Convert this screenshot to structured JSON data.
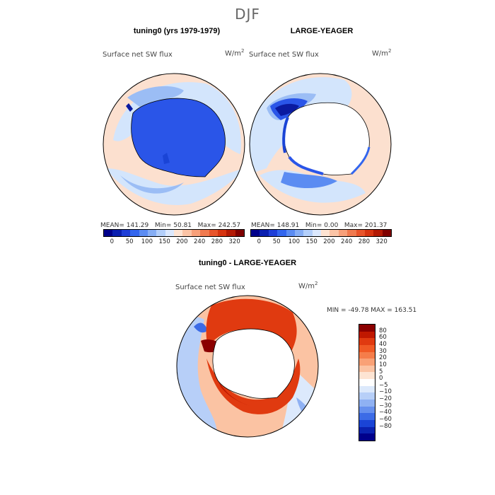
{
  "season": "DJF",
  "panels": [
    {
      "title": "tuning0 (yrs 1979-1979)",
      "variable": "Surface net SW flux",
      "units_base": "W/m",
      "units_exp": "2",
      "stats": {
        "mean": "141.29",
        "min": "50.81",
        "max": "242.57"
      }
    },
    {
      "title": "LARGE-YEAGER",
      "variable": "Surface net SW flux",
      "units_base": "W/m",
      "units_exp": "2",
      "stats": {
        "mean": "148.91",
        "min": "0.00",
        "max": "201.37"
      }
    }
  ],
  "diff_panel": {
    "title": "tuning0 - LARGE-YEAGER",
    "variable": "Surface net SW flux",
    "units_base": "W/m",
    "units_exp": "2",
    "minmax": "MIN = -49.78  MAX = 163.51"
  },
  "labels": {
    "mean": "MEAN=",
    "min": "Min=",
    "max": "Max="
  },
  "colorbar_top": {
    "ticks": [
      "0",
      "50",
      "100",
      "150",
      "200",
      "240",
      "280",
      "320"
    ],
    "colors": [
      "#00008b",
      "#0a1fb0",
      "#1f3fd8",
      "#3366ee",
      "#5b8cf2",
      "#86aef5",
      "#b3cffa",
      "#dbe8fd",
      "#fde3d2",
      "#fbc4a6",
      "#f7a07a",
      "#f07a4f",
      "#e8542a",
      "#d63410",
      "#b31a05",
      "#800000"
    ]
  },
  "colorbar_diff": {
    "ticks": [
      "80",
      "60",
      "40",
      "30",
      "20",
      "10",
      "5",
      "0",
      "−5",
      "−10",
      "−20",
      "−30",
      "−40",
      "−60",
      "−80"
    ],
    "colors": [
      "#8b0000",
      "#c01800",
      "#e03a10",
      "#f05a25",
      "#f57d4a",
      "#f9a176",
      "#fbc3a3",
      "#fde4d3",
      "#ffffff",
      "#dce9fc",
      "#b7cff8",
      "#8fb1f3",
      "#6690ee",
      "#3c6be6",
      "#1a44d6",
      "#0a22b0",
      "#00008b"
    ]
  },
  "map_colors": {
    "ocean_mid": "#fce0cf",
    "ocean_light_blue": "#d3e5fc",
    "ocean_blue": "#9bbdf5",
    "ice_blue": "#2a55e8",
    "ice_dark": "#0a1aa0",
    "diff_red": "#e8542a",
    "diff_dark": "#a01000",
    "diff_blue": "#6690ee"
  }
}
